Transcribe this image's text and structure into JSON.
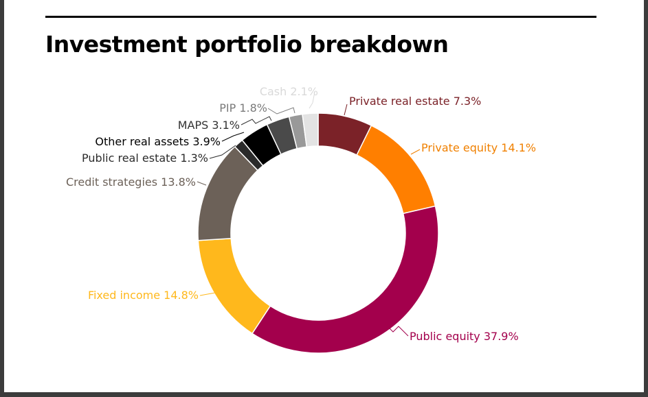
{
  "title": "Investment portfolio breakdown",
  "chart_data": {
    "type": "pie",
    "variant": "donut",
    "title": "Investment portfolio breakdown",
    "legend": "none",
    "slices": [
      {
        "label": "Private real estate",
        "value": 7.3,
        "value_label": "7.3%",
        "color": "#7b2228"
      },
      {
        "label": "Private equity",
        "value": 14.1,
        "value_label": "14.1%",
        "color": "#ff7f00"
      },
      {
        "label": "Public equity",
        "value": 37.9,
        "value_label": "37.9%",
        "color": "#a3004c"
      },
      {
        "label": "Fixed income",
        "value": 14.8,
        "value_label": "14.8%",
        "color": "#ffb81c"
      },
      {
        "label": "Credit strategies",
        "value": 13.8,
        "value_label": "13.8%",
        "color": "#6c6158"
      },
      {
        "label": "Public real estate",
        "value": 1.3,
        "value_label": "1.3%",
        "color": "#2b2b2b"
      },
      {
        "label": "Other real assets",
        "value": 3.9,
        "value_label": "3.9%",
        "color": "#000000"
      },
      {
        "label": "MAPS",
        "value": 3.1,
        "value_label": "3.1%",
        "color": "#4a4a4a"
      },
      {
        "label": "PIP",
        "value": 1.8,
        "value_label": "1.8%",
        "color": "#999999"
      },
      {
        "label": "Cash",
        "value": 2.1,
        "value_label": "2.1%",
        "color": "#e3e3e3"
      }
    ],
    "label_colors": {
      "Private real estate": "#7b2228",
      "Private equity": "#f08000",
      "Public equity": "#a3004c",
      "Fixed income": "#ffb81c",
      "Credit strategies": "#6c6158",
      "Public real estate": "#2b2b2b",
      "Other real assets": "#000000",
      "MAPS": "#333333",
      "PIP": "#7a7a7a",
      "Cash": "#d9d9d9"
    }
  }
}
